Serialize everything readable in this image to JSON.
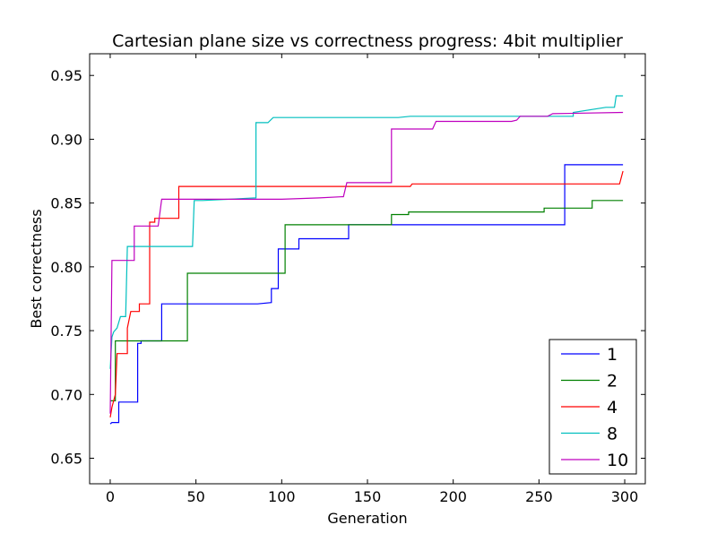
{
  "chart_data": {
    "type": "line",
    "title": "Cartesian plane size vs correctness progress: 4bit multiplier",
    "xlabel": "Generation",
    "ylabel": "Best correctness",
    "xlim": [
      -12,
      312
    ],
    "ylim": [
      0.63,
      0.967
    ],
    "x_ticks": [
      0,
      50,
      100,
      150,
      200,
      250,
      300
    ],
    "y_ticks": [
      0.65,
      0.7,
      0.75,
      0.8,
      0.85,
      0.9,
      0.95
    ],
    "x_tick_labels": [
      "0",
      "50",
      "100",
      "150",
      "200",
      "250",
      "300"
    ],
    "y_tick_labels": [
      "0.65",
      "0.70",
      "0.75",
      "0.80",
      "0.85",
      "0.90",
      "0.95"
    ],
    "grid": false,
    "legend_position": "bottom-right",
    "series": [
      {
        "name": "1",
        "color": "#0000ff",
        "points": [
          [
            0,
            0.677
          ],
          [
            1,
            0.678
          ],
          [
            5,
            0.678
          ],
          [
            5,
            0.694
          ],
          [
            16,
            0.694
          ],
          [
            16,
            0.74
          ],
          [
            18,
            0.74
          ],
          [
            18,
            0.742
          ],
          [
            30,
            0.742
          ],
          [
            30,
            0.771
          ],
          [
            86,
            0.771
          ],
          [
            94,
            0.772
          ],
          [
            94,
            0.783
          ],
          [
            98,
            0.783
          ],
          [
            98,
            0.814
          ],
          [
            110,
            0.814
          ],
          [
            110,
            0.822
          ],
          [
            139,
            0.822
          ],
          [
            139,
            0.833
          ],
          [
            265,
            0.833
          ],
          [
            265,
            0.88
          ],
          [
            299,
            0.88
          ]
        ]
      },
      {
        "name": "2",
        "color": "#008000",
        "points": [
          [
            0,
            0.695
          ],
          [
            3,
            0.695
          ],
          [
            3,
            0.742
          ],
          [
            45,
            0.742
          ],
          [
            45,
            0.795
          ],
          [
            102,
            0.795
          ],
          [
            102,
            0.833
          ],
          [
            164,
            0.833
          ],
          [
            164,
            0.841
          ],
          [
            174,
            0.841
          ],
          [
            174,
            0.843
          ],
          [
            253,
            0.843
          ],
          [
            253,
            0.846
          ],
          [
            281,
            0.846
          ],
          [
            281,
            0.852
          ],
          [
            299,
            0.852
          ]
        ]
      },
      {
        "name": "4",
        "color": "#ff0000",
        "points": [
          [
            0,
            0.682
          ],
          [
            1,
            0.69
          ],
          [
            2,
            0.695
          ],
          [
            3,
            0.7
          ],
          [
            4,
            0.732
          ],
          [
            10,
            0.732
          ],
          [
            10,
            0.752
          ],
          [
            12,
            0.765
          ],
          [
            17,
            0.765
          ],
          [
            17,
            0.771
          ],
          [
            23,
            0.771
          ],
          [
            23,
            0.835
          ],
          [
            26,
            0.835
          ],
          [
            26,
            0.838
          ],
          [
            28,
            0.838
          ],
          [
            28,
            0.838
          ],
          [
            40,
            0.838
          ],
          [
            40,
            0.863
          ],
          [
            175,
            0.863
          ],
          [
            176,
            0.865
          ],
          [
            297,
            0.865
          ],
          [
            299,
            0.875
          ]
        ]
      },
      {
        "name": "8",
        "color": "#00bfbf",
        "points": [
          [
            0,
            0.72
          ],
          [
            1,
            0.745
          ],
          [
            2,
            0.749
          ],
          [
            4,
            0.752
          ],
          [
            6,
            0.761
          ],
          [
            9,
            0.761
          ],
          [
            10,
            0.816
          ],
          [
            48,
            0.816
          ],
          [
            49,
            0.852
          ],
          [
            54,
            0.852
          ],
          [
            85,
            0.854
          ],
          [
            85,
            0.913
          ],
          [
            92,
            0.913
          ],
          [
            95,
            0.917
          ],
          [
            168,
            0.917
          ],
          [
            175,
            0.918
          ],
          [
            251,
            0.918
          ],
          [
            270,
            0.918
          ],
          [
            270,
            0.921
          ],
          [
            289,
            0.925
          ],
          [
            294,
            0.925
          ],
          [
            295,
            0.934
          ],
          [
            299,
            0.934
          ]
        ]
      },
      {
        "name": "10",
        "color": "#bf00bf",
        "points": [
          [
            0,
            0.685
          ],
          [
            1,
            0.805
          ],
          [
            14,
            0.805
          ],
          [
            14,
            0.832
          ],
          [
            28,
            0.832
          ],
          [
            30,
            0.853
          ],
          [
            100,
            0.853
          ],
          [
            122,
            0.854
          ],
          [
            136,
            0.855
          ],
          [
            138,
            0.866
          ],
          [
            164,
            0.866
          ],
          [
            164,
            0.908
          ],
          [
            188,
            0.908
          ],
          [
            190,
            0.914
          ],
          [
            234,
            0.914
          ],
          [
            237,
            0.915
          ],
          [
            239,
            0.918
          ],
          [
            255,
            0.918
          ],
          [
            258,
            0.92
          ],
          [
            299,
            0.921
          ]
        ]
      }
    ]
  }
}
